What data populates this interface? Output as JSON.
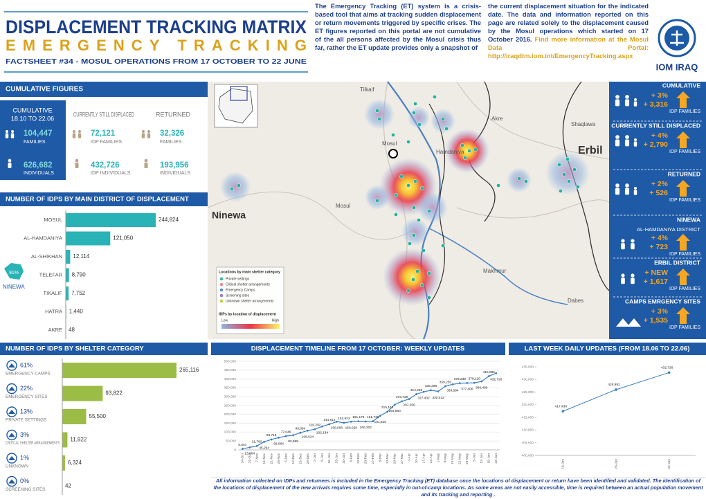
{
  "header": {
    "title": "DISPLACEMENT TRACKING MATRIX",
    "subtitle": "EMERGENCY TRACKING",
    "factsheet": "FACTSHEET #34 - MOSUL OPERATIONS FROM 17 OCTOBER TO 22 JUNE",
    "description": [
      "The Emergency Tracking (ET) system is a crisis-based tool that aims at tracking sudden displacement or return movements triggered by specific crises. The ET figures reported on this portal are not cumulative of the all persons affected by the Mosul crisis thus far, rather the ET update provides only a snapshot of",
      "the current displacement situation for the indicated date. The data and information reported on this page are related solely to the displacement caused by the Mosul operations which started on 17 October 2016."
    ],
    "portal_text": "Find more information at the Mosul Data Portal:",
    "portal_url": "http://iraqdtm.iom.int/EmergencyTracking.aspx",
    "org": "IOM IRAQ"
  },
  "cumulative": {
    "title": "CUMULATIVE FIGURES",
    "period_label": "CUMULATIVE",
    "period": "18.10 TO 22.06",
    "columns": [
      {
        "families": "104,447",
        "families_label": "FAMILIES",
        "individuals": "626,682",
        "individuals_label": "INDIVIDUALS"
      },
      {
        "heading": "CURRENTLY STILL DISPLACED",
        "families": "72,121",
        "families_label": "IDP FAMILIES",
        "individuals": "432,726",
        "individuals_label": "IDP INDIVIDUALS"
      },
      {
        "heading": "RETURNED",
        "families": "32,326",
        "families_label": "FAMILIES",
        "individuals": "193,956",
        "individuals_label": "INDIVIDUALS"
      }
    ]
  },
  "sidebar": [
    {
      "heading": "CUMULATIVE",
      "change": "+ 3%",
      "count": "+ 3,316",
      "unit": "IDP FAMILIES"
    },
    {
      "heading": "CURRENTLY STILL DISPLACED",
      "change": "+ 4%",
      "count": "+ 2,790",
      "unit": "IDP FAMILIES"
    },
    {
      "heading": "RETURNED",
      "change": "+ 2%",
      "count": "+ 526",
      "unit": "IDP FAMILIES"
    },
    {
      "heading": "NINEWA",
      "subheading": "AL-HAMDANIYA DISTRICT",
      "change": "+ 4%",
      "count": "+ 723",
      "unit": "IDP FAMILIES"
    },
    {
      "heading": "ERBIL DISTRICT",
      "change": "+ NEW",
      "count": "+ 1,617",
      "unit": "IDP FAMILIES"
    },
    {
      "heading": "CAMPS EMRGENCY SITES",
      "change": "+ 3%",
      "count": "+ 1,535",
      "unit": "IDP FAMILIES"
    }
  ],
  "map": {
    "places": [
      "Tilkaif",
      "Akre",
      "Shaqlawa",
      "Erbil",
      "Hamdaniya",
      "Mosul",
      "Mosul",
      "Ninewa",
      "Makhmur",
      "Dabes"
    ],
    "legend_title": "Locations by main shelter category",
    "legend_items": [
      "Private settings",
      "Critical shelter arrangements",
      "Emergency Camps",
      "Screening sites",
      "Unknown shelter arrangements"
    ],
    "heat_title": "IDPs by location of displacement",
    "heat_low": "Low",
    "heat_high": "High"
  },
  "district_inset": {
    "share": "91%",
    "label": "NINEWA"
  },
  "footer": "All information collected on IDPs and returnees is included in the Emergency Tracking (ET) database once the locations of displacement or return have been identified and validated. The identification of the locations of displacement of the new arrivals requires some time, especially in out-of-camp locations. As some areas are not easily accessible, time is required between an actual population movement and its tracking and reporting .",
  "chart_data": [
    {
      "type": "hbar",
      "title": "NUMBER OF IDPS BY MAIN DISTRICT OF DISPLACEMENT",
      "categories": [
        "MOSUL",
        "AL-HAMDANIYA",
        "AL-SHIKHAN",
        "TELEFAR",
        "TIKALIF",
        "HATRA",
        "AKRE"
      ],
      "values": [
        244824,
        121050,
        12114,
        8790,
        7752,
        1440,
        48
      ],
      "value_labels": [
        "244,824",
        "121,050",
        "12,114",
        "8,790",
        "7,752",
        "1,440",
        "48"
      ],
      "color": "#2ab3b6"
    },
    {
      "type": "shelter",
      "title": "NUMBER OF IDPS BY SHELTER CATEGORY",
      "categories": [
        "EMERGENCY CAMPS",
        "EMERGENCY SITES",
        "PRIVATE SETTINGS",
        "CRITICAL SHELTER ARRANGEMENTS",
        "UNKNOWN",
        "SCREENING SITES"
      ],
      "values": [
        265116,
        93822,
        55500,
        11922,
        6324,
        42
      ],
      "value_labels": [
        "265,116",
        "93,822",
        "55,500",
        "11,922",
        "6,324",
        "42"
      ],
      "shares": [
        61,
        22,
        13,
        3,
        1,
        0
      ],
      "share_labels": [
        "61%",
        "22%",
        "13%",
        "3%",
        "1%",
        "0%"
      ],
      "color": "#9bbd46"
    },
    {
      "type": "line",
      "title": "DISPLACEMENT TIMELINE FROM 17 OCTOBER: WEEKLY UPDATES",
      "categories": [
        "24-Oct",
        "31-Oct",
        "7-Nov",
        "14-Nov",
        "21-Nov",
        "28-Nov",
        "5-Dec",
        "12-Dec",
        "19-Dec",
        "26-Dec",
        "2-Jan",
        "9-Jan",
        "16-Jan",
        "23-Jan",
        "30-Jan",
        "6-Feb",
        "13-Feb",
        "20-Feb",
        "27-Feb",
        "6-Mar",
        "13-Mar",
        "20-Mar",
        "27-Mar",
        "3-Apr",
        "10-Apr",
        "17-Apr",
        "24-Apr",
        "1-May",
        "8-May",
        "15-May",
        "22-May",
        "29-May",
        "5-Jun",
        "12-Jun",
        "19-Jun",
        "22-Jun"
      ],
      "values": [
        5640,
        13804,
        21792,
        45294,
        58716,
        68964,
        77046,
        82698,
        96864,
        108624,
        116292,
        132134,
        144612,
        159006,
        152922,
        158928,
        161178,
        160302,
        161730,
        191826,
        215142,
        254880,
        273720,
        287250,
        314268,
        327432,
        336288,
        330012,
        359250,
        369594,
        376230,
        377406,
        378120,
        386400,
        415986,
        432726
      ],
      "value_labels": [
        "5,640",
        "13,804",
        "21,792",
        "45,294",
        "58,716",
        "68,964",
        "77,046",
        "82,698",
        "96,864",
        "108,624",
        "116,292",
        "132,134",
        "144,612",
        "159,006",
        "152,922",
        "158,928",
        "161,178",
        "160,302",
        "161,730",
        "191,826",
        "215,142",
        "254,880",
        "273,720",
        "287,250",
        "314,268",
        "327,432",
        "336,288",
        "330,012",
        "359,250",
        "369,594",
        "376,230",
        "377,406",
        "378,120",
        "386,400",
        "415,986",
        "432,726"
      ],
      "color": "#3b7fc4",
      "ylim": [
        0,
        500000
      ],
      "yticks": [
        0,
        {
          "value": 50000,
          "label": "50,000"
        },
        {
          "value": 100000,
          "label": "100,000"
        },
        {
          "value": 150000,
          "label": "150,000"
        },
        {
          "value": 200000,
          "label": "200,000"
        },
        {
          "value": 250000,
          "label": "250,000"
        },
        {
          "value": 300000,
          "label": "300,000"
        },
        {
          "value": 350000,
          "label": "350,000"
        },
        {
          "value": 400000,
          "label": "400,000"
        },
        {
          "value": 450000,
          "label": "450,000"
        },
        {
          "value": 500000,
          "label": "500,000"
        }
      ],
      "grid": true
    },
    {
      "type": "line",
      "title": "LAST WEEK DAILY UPDATES (FROM 18.06 TO 22.06)",
      "categories": [
        "18-Jun",
        "20-Jun",
        "22-Jun"
      ],
      "values": [
        417438,
        425982,
        432726
      ],
      "value_labels": [
        "417,438",
        "425,982",
        "432,726"
      ],
      "color": "#3b7fc4",
      "ylim": [
        400000,
        435000
      ],
      "yticks": [
        {
          "value": 400000,
          "label": "400,000"
        },
        {
          "value": 405000,
          "label": "405,000"
        },
        {
          "value": 410000,
          "label": "410,000"
        },
        {
          "value": 415000,
          "label": "415,000"
        },
        {
          "value": 420000,
          "label": "420,000"
        },
        {
          "value": 425000,
          "label": "425,000"
        },
        {
          "value": 430000,
          "label": "430,000"
        },
        {
          "value": 435000,
          "label": "435,000"
        }
      ],
      "grid": false
    }
  ]
}
